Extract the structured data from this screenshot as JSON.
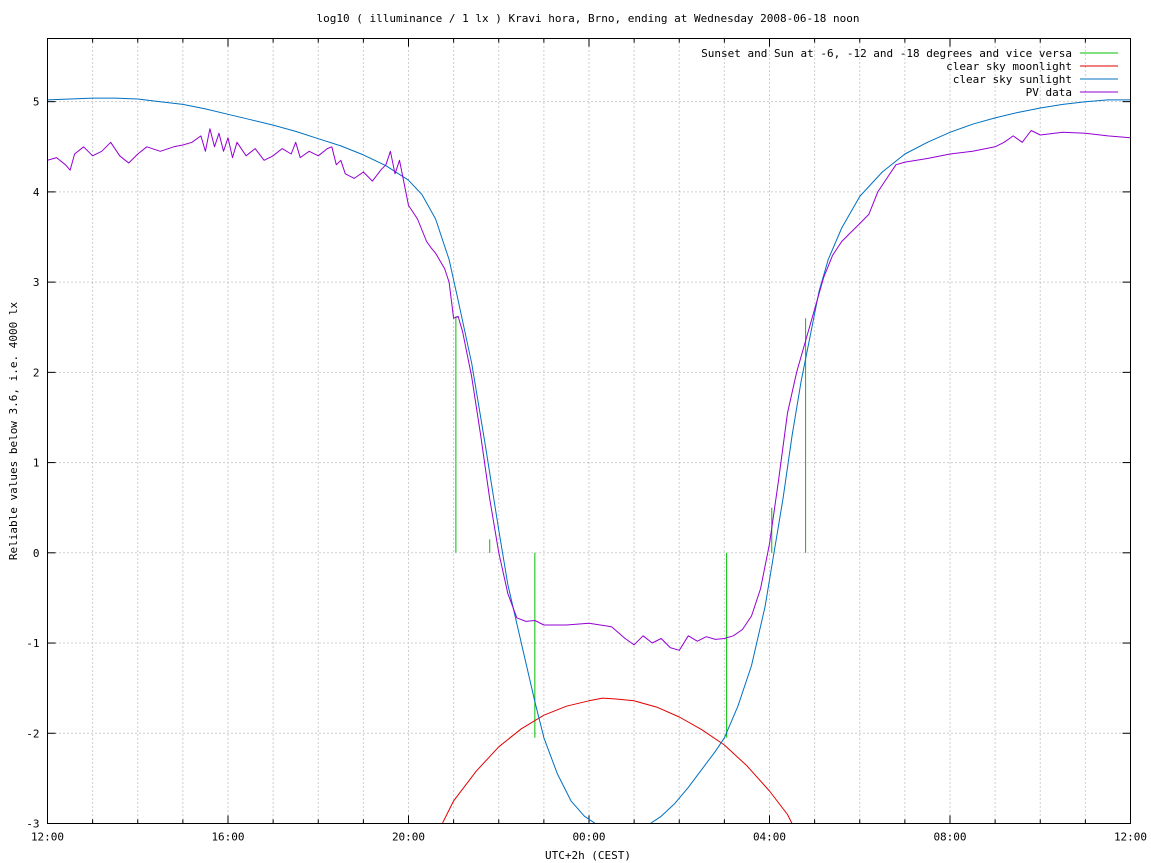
{
  "chart_data": {
    "type": "line",
    "title": "log10 ( illuminance / 1 lx ) Kravi hora, Brno, ending at Wednesday 2008-06-18 noon",
    "xlabel": "UTC+2h (CEST)",
    "ylabel": "Reliable values below 3.6, i.e. 4000 lx",
    "x_unit": "hours since 12:00 (UTC+2h)",
    "xlim": [
      0,
      24
    ],
    "ylim": [
      -3,
      5.7
    ],
    "x_ticks": [
      {
        "x": 0,
        "label": "12:00"
      },
      {
        "x": 4,
        "label": "16:00"
      },
      {
        "x": 8,
        "label": "20:00"
      },
      {
        "x": 12,
        "label": "00:00"
      },
      {
        "x": 16,
        "label": "04:00"
      },
      {
        "x": 20,
        "label": "08:00"
      },
      {
        "x": 24,
        "label": "12:00"
      }
    ],
    "y_ticks": [
      {
        "y": 5,
        "label": "5"
      },
      {
        "y": 4,
        "label": "4"
      },
      {
        "y": 3,
        "label": "3"
      },
      {
        "y": 2,
        "label": "2"
      },
      {
        "y": 1,
        "label": "1"
      },
      {
        "y": 0,
        "label": "0"
      },
      {
        "y": -1,
        "label": "-1"
      },
      {
        "y": -2,
        "label": "-2"
      },
      {
        "y": -3,
        "label": "-3"
      }
    ],
    "x_minor_step": 1,
    "y_grid_step": 1,
    "grid": true,
    "legend_position": "top-right",
    "series": [
      {
        "name": "Sunset and Sun at -6, -12 and -18 degrees and vice versa",
        "color": "#00c000",
        "kind": "vertical-markers",
        "markers": [
          {
            "x": 9.05,
            "y0": 0,
            "y1": 2.62
          },
          {
            "x": 9.8,
            "y0": 0,
            "y1": 0.15
          },
          {
            "x": 10.8,
            "y0": -2.05,
            "y1": 0
          },
          {
            "x": 15.05,
            "y0": -2.05,
            "y1": 0
          },
          {
            "x": 16.05,
            "y0": 0,
            "y1": 0.5
          },
          {
            "x": 16.8,
            "y0": 0,
            "y1": 2.6
          }
        ]
      },
      {
        "name": "clear sky moonlight",
        "color": "#e00000",
        "points": [
          [
            8.7,
            -3.05
          ],
          [
            9.0,
            -2.75
          ],
          [
            9.5,
            -2.42
          ],
          [
            10.0,
            -2.15
          ],
          [
            10.5,
            -1.95
          ],
          [
            11.0,
            -1.8
          ],
          [
            11.5,
            -1.7
          ],
          [
            12.0,
            -1.64
          ],
          [
            12.3,
            -1.61
          ],
          [
            12.6,
            -1.62
          ],
          [
            13.0,
            -1.64
          ],
          [
            13.5,
            -1.71
          ],
          [
            14.0,
            -1.82
          ],
          [
            14.5,
            -1.96
          ],
          [
            15.0,
            -2.13
          ],
          [
            15.5,
            -2.36
          ],
          [
            16.0,
            -2.64
          ],
          [
            16.4,
            -2.9
          ],
          [
            16.55,
            -3.05
          ]
        ]
      },
      {
        "name": "clear sky sunlight",
        "color": "#0070c0",
        "points": [
          [
            0.0,
            5.02
          ],
          [
            0.5,
            5.03
          ],
          [
            1.0,
            5.04
          ],
          [
            1.5,
            5.04
          ],
          [
            2.0,
            5.03
          ],
          [
            2.5,
            5.0
          ],
          [
            3.0,
            4.97
          ],
          [
            3.5,
            4.92
          ],
          [
            4.0,
            4.86
          ],
          [
            4.5,
            4.8
          ],
          [
            5.0,
            4.74
          ],
          [
            5.5,
            4.67
          ],
          [
            6.0,
            4.59
          ],
          [
            6.5,
            4.51
          ],
          [
            7.0,
            4.41
          ],
          [
            7.5,
            4.29
          ],
          [
            8.0,
            4.13
          ],
          [
            8.3,
            3.97
          ],
          [
            8.6,
            3.7
          ],
          [
            8.9,
            3.25
          ],
          [
            9.1,
            2.8
          ],
          [
            9.4,
            2.1
          ],
          [
            9.7,
            1.2
          ],
          [
            10.0,
            0.25
          ],
          [
            10.2,
            -0.35
          ],
          [
            10.5,
            -1.0
          ],
          [
            10.8,
            -1.65
          ],
          [
            11.0,
            -2.05
          ],
          [
            11.3,
            -2.45
          ],
          [
            11.6,
            -2.75
          ],
          [
            11.9,
            -2.92
          ],
          [
            12.2,
            -3.02
          ],
          [
            12.8,
            -3.04
          ],
          [
            13.3,
            -3.02
          ],
          [
            13.6,
            -2.92
          ],
          [
            13.9,
            -2.78
          ],
          [
            14.2,
            -2.6
          ],
          [
            14.5,
            -2.4
          ],
          [
            14.8,
            -2.2
          ],
          [
            15.0,
            -2.05
          ],
          [
            15.3,
            -1.7
          ],
          [
            15.6,
            -1.25
          ],
          [
            15.9,
            -0.6
          ],
          [
            16.1,
            0.0
          ],
          [
            16.3,
            0.6
          ],
          [
            16.5,
            1.3
          ],
          [
            16.7,
            1.9
          ],
          [
            16.9,
            2.4
          ],
          [
            17.1,
            2.9
          ],
          [
            17.3,
            3.25
          ],
          [
            17.6,
            3.6
          ],
          [
            18.0,
            3.95
          ],
          [
            18.5,
            4.22
          ],
          [
            19.0,
            4.42
          ],
          [
            19.5,
            4.55
          ],
          [
            20.0,
            4.66
          ],
          [
            20.5,
            4.75
          ],
          [
            21.0,
            4.82
          ],
          [
            21.5,
            4.88
          ],
          [
            22.0,
            4.93
          ],
          [
            22.5,
            4.97
          ],
          [
            23.0,
            5.0
          ],
          [
            23.5,
            5.02
          ],
          [
            24.0,
            5.02
          ]
        ]
      },
      {
        "name": "PV data",
        "color": "#9400d3",
        "points": [
          [
            0.0,
            4.35
          ],
          [
            0.2,
            4.38
          ],
          [
            0.4,
            4.3
          ],
          [
            0.5,
            4.24
          ],
          [
            0.6,
            4.42
          ],
          [
            0.8,
            4.5
          ],
          [
            1.0,
            4.4
          ],
          [
            1.2,
            4.45
          ],
          [
            1.4,
            4.55
          ],
          [
            1.6,
            4.4
          ],
          [
            1.8,
            4.32
          ],
          [
            2.0,
            4.42
          ],
          [
            2.2,
            4.5
          ],
          [
            2.5,
            4.45
          ],
          [
            2.8,
            4.5
          ],
          [
            3.0,
            4.52
          ],
          [
            3.2,
            4.55
          ],
          [
            3.4,
            4.62
          ],
          [
            3.5,
            4.45
          ],
          [
            3.6,
            4.7
          ],
          [
            3.7,
            4.5
          ],
          [
            3.8,
            4.65
          ],
          [
            3.9,
            4.45
          ],
          [
            4.0,
            4.6
          ],
          [
            4.1,
            4.38
          ],
          [
            4.2,
            4.55
          ],
          [
            4.4,
            4.4
          ],
          [
            4.6,
            4.48
          ],
          [
            4.8,
            4.35
          ],
          [
            5.0,
            4.4
          ],
          [
            5.2,
            4.48
          ],
          [
            5.4,
            4.42
          ],
          [
            5.5,
            4.55
          ],
          [
            5.6,
            4.38
          ],
          [
            5.8,
            4.45
          ],
          [
            6.0,
            4.4
          ],
          [
            6.2,
            4.48
          ],
          [
            6.3,
            4.5
          ],
          [
            6.4,
            4.3
          ],
          [
            6.5,
            4.35
          ],
          [
            6.6,
            4.2
          ],
          [
            6.8,
            4.15
          ],
          [
            7.0,
            4.22
          ],
          [
            7.2,
            4.12
          ],
          [
            7.4,
            4.25
          ],
          [
            7.5,
            4.3
          ],
          [
            7.6,
            4.45
          ],
          [
            7.7,
            4.2
          ],
          [
            7.8,
            4.35
          ],
          [
            7.9,
            4.1
          ],
          [
            8.0,
            3.85
          ],
          [
            8.2,
            3.7
          ],
          [
            8.4,
            3.45
          ],
          [
            8.5,
            3.38
          ],
          [
            8.6,
            3.32
          ],
          [
            8.8,
            3.15
          ],
          [
            8.9,
            3.0
          ],
          [
            9.0,
            2.6
          ],
          [
            9.1,
            2.62
          ],
          [
            9.2,
            2.45
          ],
          [
            9.4,
            1.95
          ],
          [
            9.6,
            1.3
          ],
          [
            9.8,
            0.6
          ],
          [
            10.0,
            0.0
          ],
          [
            10.2,
            -0.45
          ],
          [
            10.4,
            -0.72
          ],
          [
            10.6,
            -0.76
          ],
          [
            10.8,
            -0.75
          ],
          [
            11.0,
            -0.8
          ],
          [
            11.5,
            -0.8
          ],
          [
            12.0,
            -0.78
          ],
          [
            12.5,
            -0.82
          ],
          [
            12.8,
            -0.95
          ],
          [
            13.0,
            -1.02
          ],
          [
            13.2,
            -0.92
          ],
          [
            13.4,
            -1.0
          ],
          [
            13.6,
            -0.95
          ],
          [
            13.8,
            -1.05
          ],
          [
            14.0,
            -1.08
          ],
          [
            14.2,
            -0.92
          ],
          [
            14.4,
            -0.98
          ],
          [
            14.6,
            -0.93
          ],
          [
            14.8,
            -0.96
          ],
          [
            15.0,
            -0.95
          ],
          [
            15.2,
            -0.92
          ],
          [
            15.4,
            -0.85
          ],
          [
            15.6,
            -0.7
          ],
          [
            15.8,
            -0.4
          ],
          [
            16.0,
            0.1
          ],
          [
            16.2,
            0.8
          ],
          [
            16.4,
            1.55
          ],
          [
            16.6,
            2.0
          ],
          [
            16.8,
            2.35
          ],
          [
            17.0,
            2.7
          ],
          [
            17.2,
            3.05
          ],
          [
            17.4,
            3.3
          ],
          [
            17.6,
            3.45
          ],
          [
            17.8,
            3.55
          ],
          [
            18.0,
            3.65
          ],
          [
            18.2,
            3.75
          ],
          [
            18.4,
            4.0
          ],
          [
            18.6,
            4.15
          ],
          [
            18.8,
            4.3
          ],
          [
            19.0,
            4.33
          ],
          [
            19.5,
            4.37
          ],
          [
            20.0,
            4.42
          ],
          [
            20.5,
            4.45
          ],
          [
            21.0,
            4.5
          ],
          [
            21.2,
            4.55
          ],
          [
            21.4,
            4.62
          ],
          [
            21.6,
            4.55
          ],
          [
            21.8,
            4.68
          ],
          [
            22.0,
            4.63
          ],
          [
            22.5,
            4.66
          ],
          [
            23.0,
            4.65
          ],
          [
            23.5,
            4.62
          ],
          [
            24.0,
            4.6
          ]
        ]
      }
    ]
  }
}
